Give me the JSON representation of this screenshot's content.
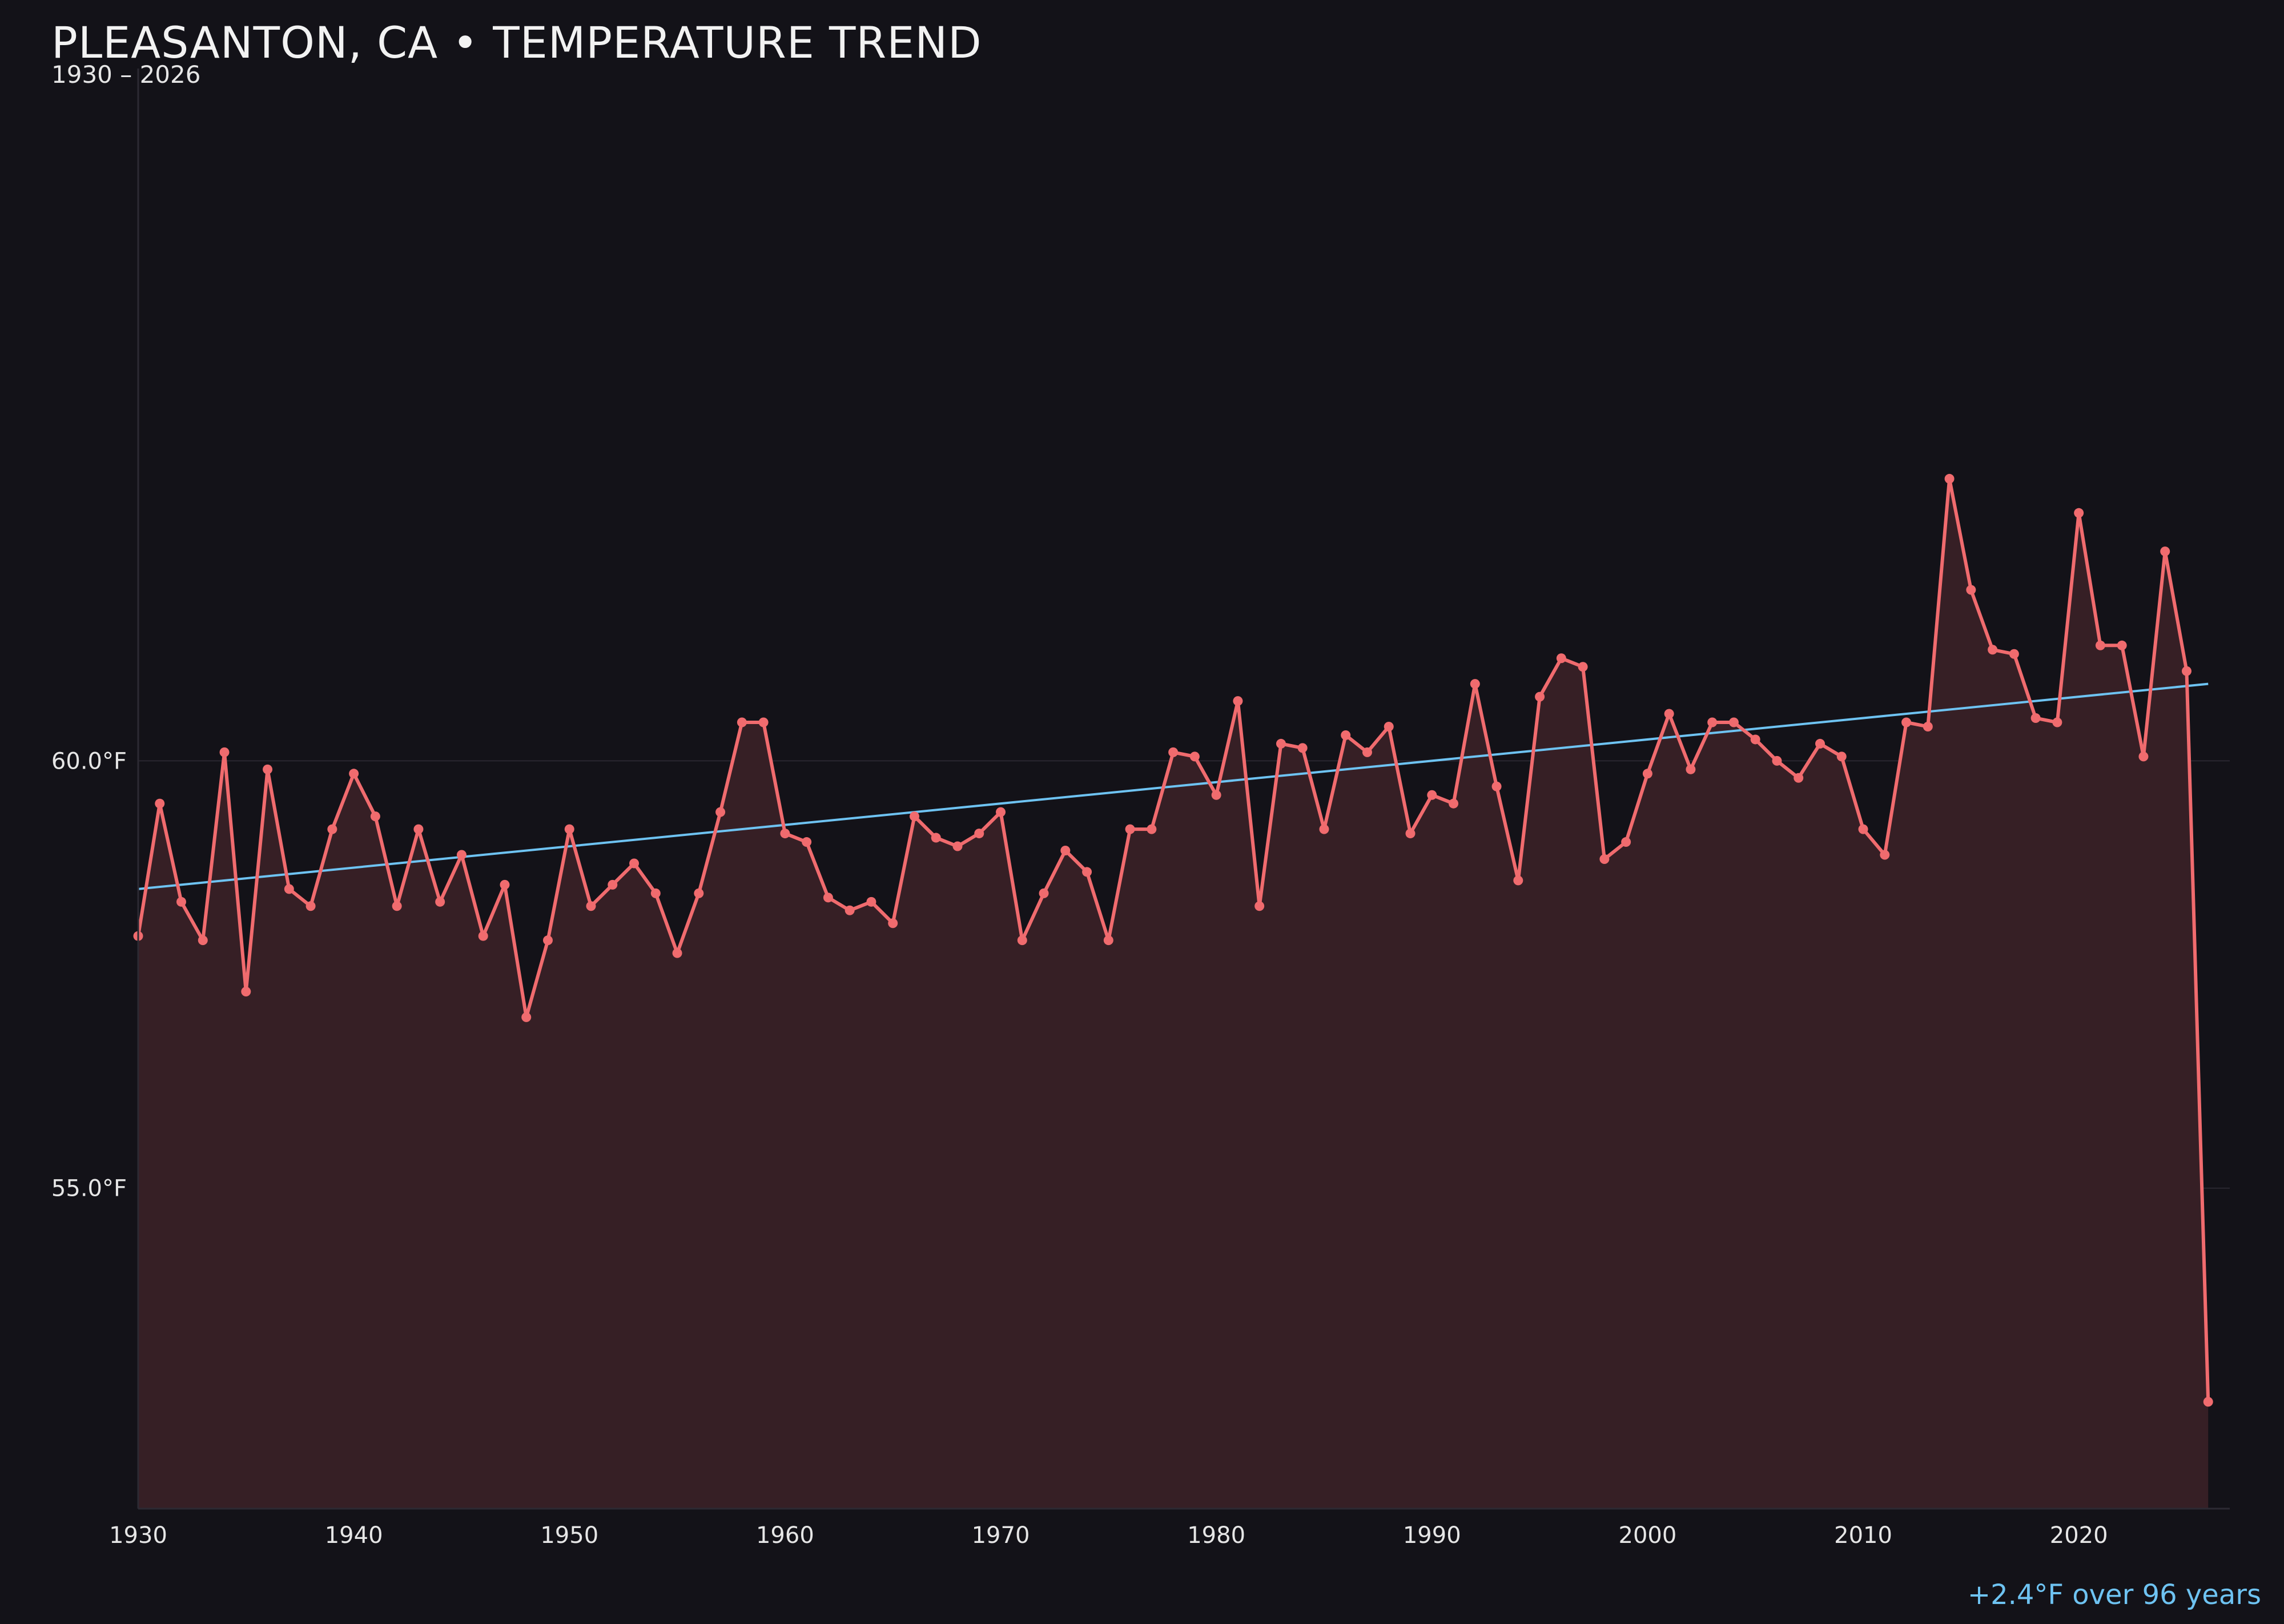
{
  "title": "PLEASANTON, CA • TEMPERATURE TREND",
  "subtitle": "1930 – 2026",
  "trend_note": "+2.4°F over 96 years",
  "colors": {
    "background": "#131218",
    "series": "#f06b6e",
    "area_fill": "#361f25",
    "trend": "#6ec3f2",
    "grid": "#2a2730",
    "text": "#e6e6e6"
  },
  "chart_data": {
    "type": "line",
    "title": "PLEASANTON, CA • TEMPERATURE TREND",
    "subtitle": "1930 – 2026",
    "xlabel": "",
    "ylabel": "",
    "xlim": [
      1930,
      2027
    ],
    "ylim": [
      51.25,
      68.1
    ],
    "x_ticks": [
      1930,
      1940,
      1950,
      1960,
      1970,
      1980,
      1990,
      2000,
      2010,
      2020
    ],
    "y_ticks": [
      {
        "value": 55,
        "label": "55.0°F"
      },
      {
        "value": 60,
        "label": "60.0°F"
      }
    ],
    "grid": "horizontal",
    "x": [
      1930,
      1931,
      1932,
      1933,
      1934,
      1935,
      1936,
      1937,
      1938,
      1939,
      1940,
      1941,
      1942,
      1943,
      1944,
      1945,
      1946,
      1947,
      1948,
      1949,
      1950,
      1951,
      1952,
      1953,
      1954,
      1955,
      1956,
      1957,
      1958,
      1959,
      1960,
      1961,
      1962,
      1963,
      1964,
      1965,
      1966,
      1967,
      1968,
      1969,
      1970,
      1971,
      1972,
      1973,
      1974,
      1975,
      1976,
      1977,
      1978,
      1979,
      1980,
      1981,
      1982,
      1983,
      1984,
      1985,
      1986,
      1987,
      1988,
      1989,
      1990,
      1991,
      1992,
      1993,
      1994,
      1995,
      1996,
      1997,
      1998,
      1999,
      2000,
      2001,
      2002,
      2003,
      2004,
      2005,
      2006,
      2007,
      2008,
      2009,
      2010,
      2011,
      2012,
      2013,
      2014,
      2015,
      2016,
      2017,
      2018,
      2019,
      2020,
      2021,
      2022,
      2023,
      2024,
      2025,
      2026
    ],
    "series": [
      {
        "values": [
          57.95,
          59.5,
          58.35,
          57.9,
          60.1,
          57.3,
          59.9,
          58.5,
          58.3,
          59.2,
          59.85,
          59.35,
          58.3,
          59.2,
          58.35,
          58.9,
          57.95,
          58.55,
          57.0,
          57.9,
          59.2,
          58.3,
          58.55,
          58.8,
          58.45,
          57.75,
          58.45,
          59.4,
          60.45,
          60.45,
          59.15,
          59.05,
          58.4,
          58.25,
          58.35,
          58.1,
          59.35,
          59.1,
          59.0,
          59.15,
          59.4,
          57.9,
          58.45,
          58.95,
          58.7,
          57.9,
          59.2,
          59.2,
          60.1,
          60.05,
          59.6,
          60.7,
          58.3,
          60.2,
          60.15,
          59.2,
          60.3,
          60.1,
          60.4,
          59.15,
          59.6,
          59.5,
          60.9,
          59.7,
          58.6,
          60.75,
          61.2,
          61.1,
          58.85,
          59.05,
          59.85,
          60.55,
          59.9,
          60.45,
          60.45,
          60.25,
          60.0,
          59.8,
          60.2,
          60.05,
          59.2,
          58.9,
          60.45,
          60.4,
          63.3,
          62.0,
          61.3,
          61.25,
          60.5,
          60.45,
          62.9,
          61.35,
          61.35,
          60.05,
          62.45,
          61.05,
          52.5
        ]
      }
    ],
    "trendline": {
      "x": [
        1930,
        2026
      ],
      "y": [
        58.5,
        60.9
      ]
    }
  }
}
